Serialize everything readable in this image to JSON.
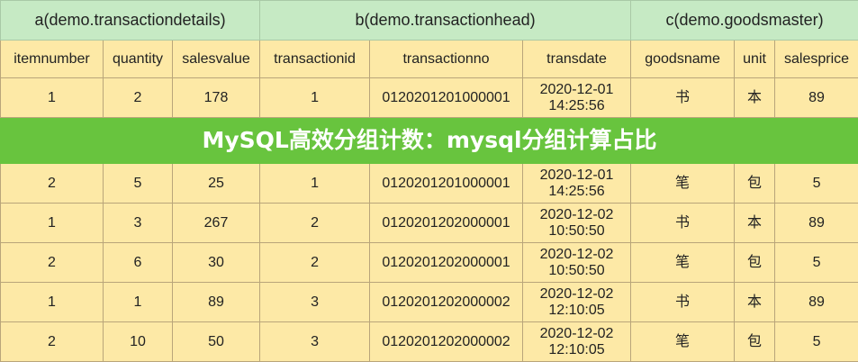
{
  "groups": [
    "a(demo.transactiondetails)",
    "b(demo.transactionhead)",
    "c(demo.goodsmaster)"
  ],
  "columns": [
    "itemnumber",
    "quantity",
    "salesvalue",
    "transactionid",
    "transactionno",
    "transdate",
    "goodsname",
    "unit",
    "salesprice"
  ],
  "rows": [
    [
      "1",
      "2",
      "178",
      "1",
      "0120201201000001",
      "2020-12-01\n14:25:56",
      "书",
      "本",
      "89"
    ],
    [
      "2",
      "5",
      "25",
      "1",
      "0120201201000001",
      "2020-12-01\n14:25:56",
      "笔",
      "包",
      "5"
    ],
    [
      "1",
      "3",
      "267",
      "2",
      "0120201202000001",
      "2020-12-02\n10:50:50",
      "书",
      "本",
      "89"
    ],
    [
      "2",
      "6",
      "30",
      "2",
      "0120201202000001",
      "2020-12-02\n10:50:50",
      "笔",
      "包",
      "5"
    ],
    [
      "1",
      "1",
      "89",
      "3",
      "0120201202000002",
      "2020-12-02\n12:10:05",
      "书",
      "本",
      "89"
    ],
    [
      "2",
      "10",
      "50",
      "3",
      "0120201202000002",
      "2020-12-02\n12:10:05",
      "笔",
      "包",
      "5"
    ]
  ],
  "banner": {
    "title": "MySQL高效分组计数：mysql分组计算占比"
  },
  "colors": {
    "group_header": "#c6eac4",
    "body": "#fde9a6",
    "banner": "#68c43e"
  }
}
